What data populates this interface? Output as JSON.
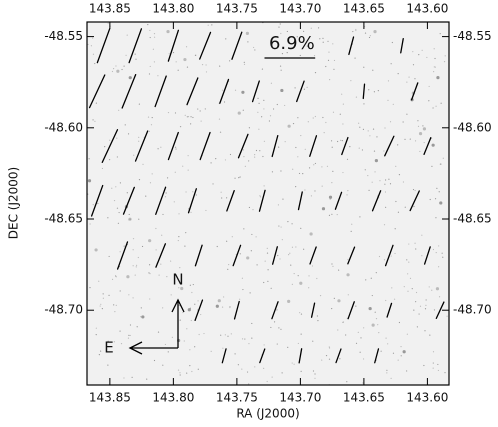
{
  "chart_data": {
    "type": "vector",
    "xlabel": "RA (J2000)",
    "ylabel": "DEC (J2000)",
    "xlim": [
      143.868,
      143.583
    ],
    "ylim": [
      -48.741,
      -48.542
    ],
    "xticks": [
      143.85,
      {
        "value": 143.8,
        "label": "143.80"
      },
      143.75,
      {
        "value": 143.7,
        "label": "143.70"
      },
      143.65,
      {
        "value": 143.6,
        "label": "143.60"
      }
    ],
    "yticks": [
      -48.55,
      {
        "value": -48.6,
        "label": "-48.60"
      },
      -48.65,
      {
        "value": -48.7,
        "label": "-48.70"
      }
    ],
    "scale_bar": {
      "value": 6.9,
      "label": "6.9%"
    },
    "compass": {
      "north": "N",
      "east": "E"
    },
    "color": "#000000",
    "vectors": {
      "ra": [
        143.855,
        143.83,
        143.8,
        143.775,
        143.75,
        143.66,
        143.62,
        143.86,
        143.835,
        143.81,
        143.785,
        143.76,
        143.735,
        143.7,
        143.65,
        143.61,
        143.85,
        143.825,
        143.8,
        143.775,
        143.745,
        143.72,
        143.69,
        143.665,
        143.63,
        143.6,
        143.86,
        143.835,
        143.81,
        143.785,
        143.755,
        143.73,
        143.7,
        143.67,
        143.64,
        143.61,
        143.84,
        143.81,
        143.78,
        143.75,
        143.72,
        143.69,
        143.66,
        143.63,
        143.6,
        143.78,
        143.75,
        143.72,
        143.69,
        143.66,
        143.63,
        143.59,
        143.76,
        143.73,
        143.7,
        143.67,
        143.64
      ],
      "dec": [
        -48.555,
        -48.555,
        -48.555,
        -48.555,
        -48.555,
        -48.555,
        -48.555,
        -48.58,
        -48.58,
        -48.58,
        -48.58,
        -48.58,
        -48.58,
        -48.58,
        -48.58,
        -48.58,
        -48.61,
        -48.61,
        -48.61,
        -48.61,
        -48.61,
        -48.61,
        -48.61,
        -48.61,
        -48.61,
        -48.61,
        -48.64,
        -48.64,
        -48.64,
        -48.64,
        -48.64,
        -48.64,
        -48.64,
        -48.64,
        -48.64,
        -48.64,
        -48.67,
        -48.67,
        -48.67,
        -48.67,
        -48.67,
        -48.67,
        -48.67,
        -48.67,
        -48.67,
        -48.7,
        -48.7,
        -48.7,
        -48.7,
        -48.7,
        -48.7,
        -48.7,
        -48.725,
        -48.725,
        -48.725,
        -48.725,
        -48.725
      ],
      "p": [
        5,
        5,
        4.5,
        4,
        4,
        2.5,
        2,
        5,
        5,
        4.5,
        4,
        3.5,
        3,
        3,
        2,
        2.5,
        5,
        4.5,
        4,
        4,
        3.5,
        3,
        3,
        2.5,
        3,
        2.5,
        4.5,
        4,
        4,
        3.5,
        3,
        3,
        2.5,
        2.5,
        3,
        3,
        4,
        3.5,
        3,
        3,
        2.5,
        2.5,
        2.5,
        3,
        2.5,
        3,
        2.5,
        2.5,
        2,
        2.5,
        2,
        2.5,
        2,
        2,
        2,
        2,
        2
      ],
      "pa": [
        160,
        160,
        162,
        158,
        160,
        165,
        170,
        155,
        158,
        160,
        158,
        160,
        162,
        160,
        175,
        160,
        155,
        158,
        160,
        160,
        158,
        165,
        162,
        160,
        155,
        158,
        160,
        158,
        160,
        162,
        160,
        165,
        168,
        160,
        158,
        155,
        160,
        158,
        162,
        160,
        165,
        160,
        158,
        160,
        162,
        160,
        165,
        160,
        168,
        160,
        162,
        155,
        165,
        160,
        170,
        160,
        165
      ]
    }
  }
}
